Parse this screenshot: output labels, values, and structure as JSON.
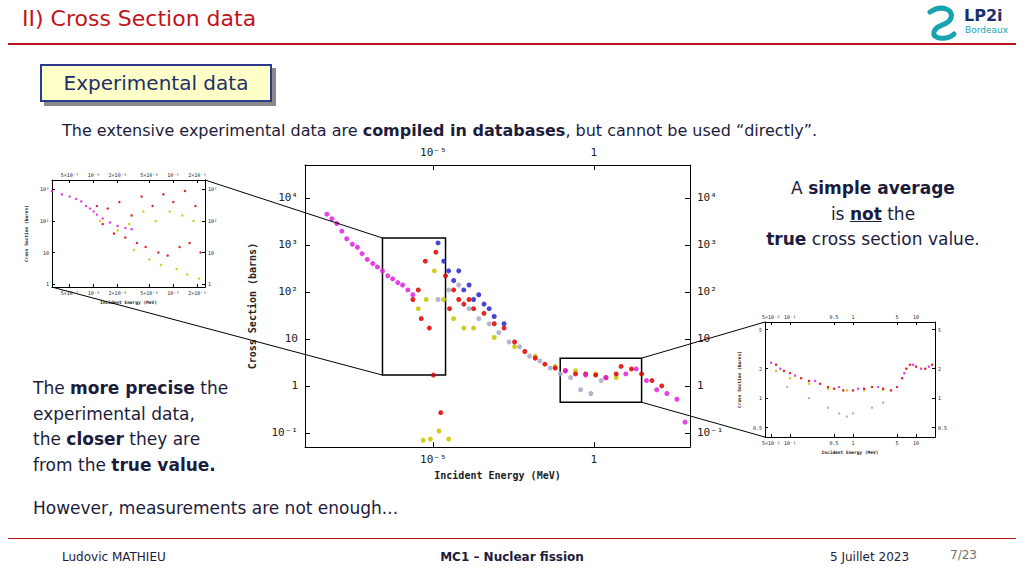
{
  "header": {
    "title": "II) Cross Section data",
    "logo": {
      "name": "LP2i",
      "place": "Bordeaux"
    }
  },
  "box_label": "Experimental data",
  "intro": [
    {
      "text": "The extensive experimental data are "
    },
    {
      "text": "compiled in databases",
      "bold": true
    },
    {
      "text": ", but cannot be used “directly”."
    }
  ],
  "note_right": [
    [
      {
        "text": "A "
      },
      {
        "text": "simple average",
        "bold": true
      }
    ],
    [
      {
        "text": "is "
      },
      {
        "text": "not",
        "bold": true,
        "underline": true
      },
      {
        "text": " the"
      }
    ],
    [
      {
        "text": "true",
        "bold": true
      },
      {
        "text": " cross section value."
      }
    ]
  ],
  "note_left": [
    [
      {
        "text": "The "
      },
      {
        "text": "more precise",
        "bold": true
      },
      {
        "text": " the"
      }
    ],
    [
      {
        "text": "experimental data,"
      }
    ],
    [
      {
        "text": "the "
      },
      {
        "text": "closer",
        "bold": true
      },
      {
        "text": " they are"
      }
    ],
    [
      {
        "text": "from the "
      },
      {
        "text": "true value.",
        "bold": true
      }
    ]
  ],
  "closing": "However, measurements are not enough...",
  "footer": {
    "author": "Ludovic MATHIEU",
    "course": "MC1 – Nuclear fission",
    "date": "5 Juillet 2023",
    "page": "7/23"
  },
  "chart_data": [
    {
      "type": "scatter",
      "xlabel": "Incident Energy (MeV)",
      "ylabel": "Cross Section (barns)",
      "log": true,
      "grid": false,
      "marker": "circle",
      "xlim": [
        1e-09,
        1000
      ],
      "xticks": [
        {
          "value": 1e-05,
          "label": "10⁻⁵"
        },
        1
      ],
      "ylim": [
        0.05,
        50000
      ],
      "yticks": [
        {
          "value": 0.1,
          "label": "10⁻¹"
        },
        1,
        10,
        {
          "value": 100,
          "label": "10²"
        },
        {
          "value": 1000,
          "label": "10³"
        },
        {
          "value": 10000,
          "label": "10⁴"
        }
      ],
      "zoom_boxes": [
        {
          "xlim": [
            2.6e-07,
            2.4e-05
          ],
          "ylim": [
            1.7,
            1400
          ]
        },
        {
          "xlim": [
            0.09,
            31
          ],
          "ylim": [
            0.45,
            3.9
          ]
        }
      ],
      "series": [
        {
          "color": "#a8a8c8",
          "x": [
            1.4e-05,
            3e-05,
            6.2e-05,
            0.00013,
            0.00026,
            0.00055,
            0.0011,
            0.0023,
            0.0049,
            0.01,
            0.021,
            0.044,
            0.091,
            0.19,
            0.39,
            0.81,
            1.7
          ],
          "values": [
            69,
            110,
            140,
            44,
            27,
            21,
            13.6,
            8.6,
            6.8,
            4.3,
            3.4,
            2.4,
            1.8,
            1.5,
            0.83,
            0.69,
            1.3
          ]
        },
        {
          "color": "#c8c400",
          "x": [
            3.4e-06,
            4.8e-06,
            6e-06,
            8.1e-06,
            1.07e-05,
            1.5e-05,
            2.1e-05,
            3e-05,
            4.3e-05,
            8.9e-05,
            0.00018,
            0.00079,
            0.0034,
            0.015,
            0.063,
            0.27,
            1.15,
            5.0
          ],
          "values": [
            44,
            0.07,
            69,
            0.074,
            280,
            0.11,
            69,
            0.074,
            27,
            17,
            17,
            10.7,
            6.8,
            4.3,
            2.6,
            2.1,
            1.8,
            1.5
          ]
        },
        {
          "color": "#2424d0",
          "x": [
            1.4e-05,
            2.1e-05,
            3e-05,
            4.3e-05,
            6.2e-05,
            8.9e-05,
            0.00013,
            0.00018,
            0.00026,
            0.00038,
            0.00055,
            0.00079,
            0.0016
          ],
          "values": [
            1100,
            450,
            280,
            175,
            280,
            110,
            140,
            69,
            87,
            55,
            44,
            30,
            21
          ]
        },
        {
          "color": "#e00000",
          "x": [
            2.3e-06,
            3.4e-06,
            4.2e-06,
            5.6e-06,
            7.5e-06,
            1e-05,
            1.2e-05,
            1.7e-05,
            2.4e-05,
            3.2e-05,
            4.3e-05,
            6.2e-05,
            8.9e-05,
            0.00013,
            0.00018,
            0.00038,
            0.00079,
            0.0016,
            0.0034,
            0.0071,
            0.015,
            0.03,
            0.063,
            0.13,
            0.27,
            0.56,
            1.15,
            2.4,
            5.0,
            7.1,
            15,
            31,
            65,
            132
          ],
          "values": [
            69,
            110,
            27,
            450,
            17,
            1.7,
            700,
            0.27,
            220,
            44,
            110,
            69,
            55,
            69,
            44,
            35,
            21,
            17,
            8.6,
            5.4,
            3.9,
            2.9,
            2.4,
            2.1,
            1.8,
            1.8,
            1.7,
            1.5,
            1.8,
            2.6,
            2.3,
            1.8,
            1.3,
            1
          ]
        },
        {
          "color": "#e020e0",
          "x": [
            4.8e-09,
            6.9e-09,
            9.8e-09,
            1.4e-08,
            2e-08,
            3e-08,
            4.3e-08,
            6e-08,
            8.7e-08,
            1.3e-07,
            1.8e-07,
            2.6e-07,
            3.8e-07,
            5.4e-07,
            7.8e-07,
            1.1e-06,
            1.6e-06,
            2.3e-06,
            0.13,
            0.56,
            2.4,
            10,
            21,
            44,
            92,
            190,
            390,
            700
          ],
          "values": [
            4500,
            3600,
            2850,
            1960,
            1350,
            1030,
            890,
            650,
            490,
            400,
            340,
            280,
            220,
            190,
            158,
            140,
            110,
            87,
            2.1,
            1.7,
            1.5,
            1.8,
            2.3,
            1.3,
            0.83,
            0.69,
            0.52,
            0.17
          ]
        }
      ]
    },
    {
      "type": "scatter",
      "xlabel": "Incident Energy (MeV)",
      "ylabel": "Cross Section (barns)",
      "log": true,
      "grid": false,
      "marker": "circle",
      "xlim": [
        3e-07,
        2.5e-05
      ],
      "xticks": [
        {
          "value": 5e-07,
          "label": "5×10⁻⁷"
        },
        {
          "value": 1e-06,
          "label": "10⁻⁶"
        },
        {
          "value": 2e-06,
          "label": "2×10⁻⁶"
        },
        {
          "value": 5e-06,
          "label": "5×10⁻⁶"
        },
        {
          "value": 1e-05,
          "label": "10⁻⁵"
        },
        {
          "value": 2e-05,
          "label": "2×10⁻⁵"
        }
      ],
      "ylim": [
        0.8,
        2000
      ],
      "yticks": [
        1,
        10,
        {
          "value": 100,
          "label": "10²"
        },
        {
          "value": 1000,
          "label": "10³"
        }
      ],
      "series": [
        {
          "color": "#c8c400",
          "x": [
            1.2e-06,
            2e-06,
            2.8e-06,
            3.2e-06,
            4.2e-06,
            5e-06,
            6e-06,
            7e-06,
            9e-06,
            1.1e-05,
            1.3e-05,
            1.5e-05,
            1.8e-05,
            2.1e-05
          ],
          "values": [
            100,
            50,
            80,
            12,
            200,
            6,
            100,
            4,
            200,
            3,
            150,
            2,
            100,
            1.5
          ]
        },
        {
          "color": "#e00000",
          "x": [
            1.1e-06,
            1.3e-06,
            1.5e-06,
            1.8e-06,
            2.1e-06,
            2.5e-06,
            3e-06,
            3.5e-06,
            4e-06,
            4.5e-06,
            5.5e-06,
            6.5e-06,
            7.5e-06,
            8.5e-06,
            1e-05,
            1.2e-05,
            1.4e-05,
            1.6e-05,
            1.9e-05,
            2.2e-05
          ],
          "values": [
            300,
            80,
            250,
            40,
            400,
            30,
            150,
            20,
            600,
            15,
            300,
            10,
            700,
            8,
            400,
            15,
            900,
            20,
            300,
            10
          ]
        },
        {
          "color": "#e020e0",
          "x": [
            3e-07,
            4e-07,
            5e-07,
            6e-07,
            7e-07,
            8e-07,
            9e-07,
            1e-06,
            1.1e-06,
            1.3e-06,
            1.6e-06,
            2e-06,
            2.5e-06,
            3e-06
          ],
          "values": [
            900,
            700,
            600,
            500,
            420,
            300,
            250,
            200,
            160,
            120,
            90,
            70,
            60,
            55
          ]
        }
      ]
    },
    {
      "type": "scatter",
      "xlabel": "Incident Energy (MeV)",
      "ylabel": "Cross Section (barns)",
      "log": true,
      "grid": false,
      "marker": "circle",
      "xlim": [
        0.04,
        20
      ],
      "xticks": [
        {
          "value": 0.05,
          "label": "5×10⁻²"
        },
        {
          "value": 0.1,
          "label": "10⁻¹"
        },
        0.5,
        1,
        5,
        10
      ],
      "ylim": [
        0.4,
        6
      ],
      "yticks": [
        0.5,
        1,
        2,
        5
      ],
      "series": [
        {
          "color": "#a8a8c8",
          "x": [
            0.09,
            0.2,
            0.4,
            0.6,
            0.8,
            1,
            2,
            3
          ],
          "values": [
            1.3,
            1.0,
            0.8,
            0.7,
            0.65,
            0.7,
            0.8,
            0.9
          ]
        },
        {
          "color": "#c8c400",
          "x": [
            0.06,
            0.1,
            0.2,
            0.4,
            0.8,
            1.5,
            3
          ],
          "values": [
            1.9,
            1.6,
            1.4,
            1.25,
            1.2,
            1.2,
            1.22
          ]
        },
        {
          "color": "#e00000",
          "x": [
            0.06,
            0.08,
            0.1,
            0.15,
            0.2,
            0.3,
            0.4,
            0.5,
            0.7,
            1,
            1.5,
            2,
            3,
            4,
            5,
            6,
            7,
            8,
            10,
            14,
            18
          ],
          "values": [
            2.2,
            1.9,
            1.8,
            1.6,
            1.5,
            1.4,
            1.3,
            1.25,
            1.2,
            1.2,
            1.25,
            1.3,
            1.25,
            1.2,
            1.3,
            1.6,
            2.0,
            2.2,
            2.1,
            2.0,
            2.2
          ]
        },
        {
          "color": "#e020e0",
          "x": [
            0.05,
            0.07,
            0.12,
            0.25,
            0.6,
            1.2,
            2.5,
            6.5,
            9,
            12,
            16
          ],
          "values": [
            2.3,
            2.0,
            1.7,
            1.5,
            1.3,
            1.25,
            1.3,
            1.8,
            2.2,
            2.0,
            2.1
          ]
        }
      ]
    }
  ]
}
